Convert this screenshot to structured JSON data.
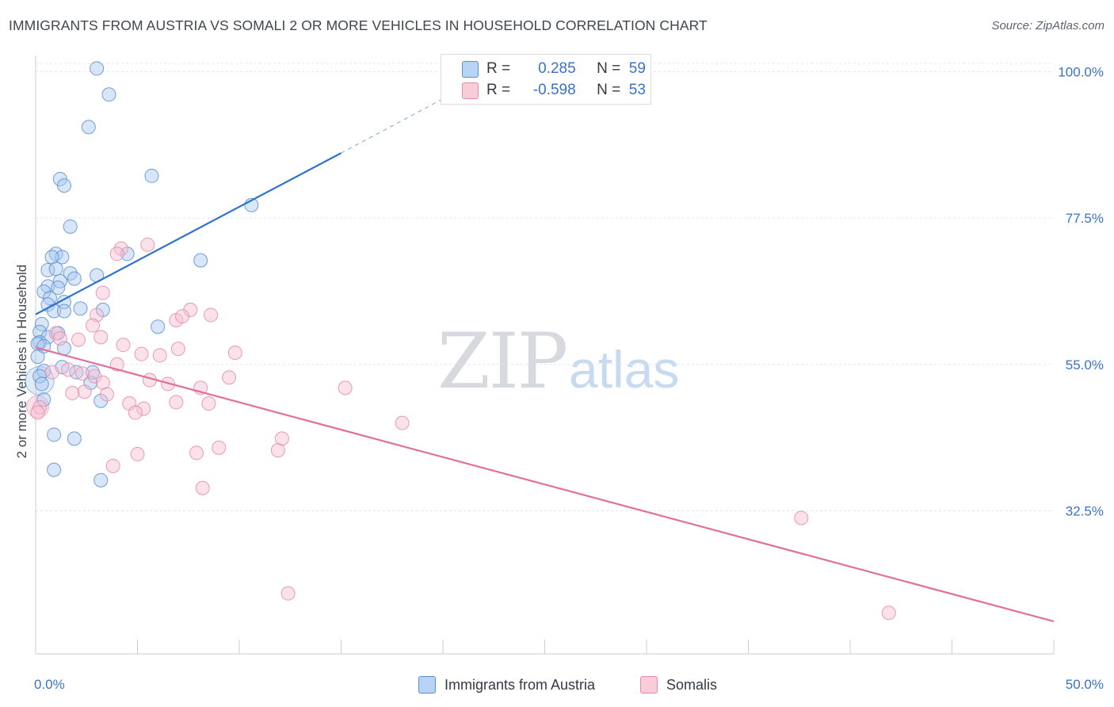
{
  "title": "IMMIGRANTS FROM AUSTRIA VS SOMALI 2 OR MORE VEHICLES IN HOUSEHOLD CORRELATION CHART",
  "source": "Source: ZipAtlas.com",
  "watermark": {
    "zip": "ZIP",
    "atlas": "atlas"
  },
  "colors": {
    "austria_fill": "#a9c8ef",
    "austria_stroke": "#5b8fd4",
    "austria_line": "#2f73cc",
    "somali_fill": "#f6bfd0",
    "somali_stroke": "#e58aa8",
    "somali_line": "#e0709a",
    "tick_label": "#3a73c4",
    "grid": "#e3e6ea"
  },
  "legend": {
    "rows": [
      {
        "r_label": "R =",
        "r_value": "0.285",
        "n_label": "N =",
        "n_value": "59"
      },
      {
        "r_label": "R =",
        "r_value": "-0.598",
        "n_label": "N =",
        "n_value": "53"
      }
    ]
  },
  "chart_data": {
    "type": "scatter",
    "xlabel": "",
    "ylabel": "2 or more Vehicles in Household",
    "xlim": [
      0,
      50
    ],
    "ylim": [
      10.5,
      102.5
    ],
    "x_tick_labels": [
      "0.0%",
      "50.0%"
    ],
    "y_ticks": [
      32.5,
      55.0,
      77.5,
      100.0
    ],
    "y_tick_labels": [
      "32.5%",
      "55.0%",
      "77.5%",
      "100.0%"
    ],
    "x_minor_ticks": [
      0,
      5,
      10,
      15,
      20,
      25,
      30,
      35,
      40,
      45,
      50
    ],
    "grid": true,
    "legend_position": "bottom",
    "series": [
      {
        "name": "Immigrants from Austria",
        "r": 0.285,
        "n": 59,
        "trend": {
          "x0": 0,
          "y0": 62.7,
          "x1": 15,
          "y1": 87.5,
          "dashed_to_x": 21,
          "dashed_to_y": 97.5
        },
        "points": [
          [
            3.0,
            100.5
          ],
          [
            3.6,
            96.5
          ],
          [
            2.6,
            91.5
          ],
          [
            1.2,
            83.5
          ],
          [
            1.4,
            82.5
          ],
          [
            5.7,
            84.0
          ],
          [
            10.6,
            79.5
          ],
          [
            1.7,
            76.2
          ],
          [
            4.5,
            72.0
          ],
          [
            8.1,
            71.0
          ],
          [
            1.0,
            72.0
          ],
          [
            1.3,
            71.5
          ],
          [
            0.8,
            71.5
          ],
          [
            0.6,
            69.5
          ],
          [
            1.7,
            69.0
          ],
          [
            3.0,
            68.7
          ],
          [
            1.0,
            69.7
          ],
          [
            1.2,
            67.8
          ],
          [
            1.9,
            68.2
          ],
          [
            0.6,
            67.0
          ],
          [
            0.4,
            66.2
          ],
          [
            0.7,
            65.2
          ],
          [
            1.1,
            66.8
          ],
          [
            1.4,
            64.6
          ],
          [
            0.6,
            64.2
          ],
          [
            0.9,
            63.2
          ],
          [
            1.4,
            63.2
          ],
          [
            2.2,
            63.6
          ],
          [
            3.3,
            63.4
          ],
          [
            6.0,
            60.8
          ],
          [
            0.3,
            61.2
          ],
          [
            0.2,
            60.0
          ],
          [
            0.6,
            59.2
          ],
          [
            0.2,
            58.4
          ],
          [
            0.1,
            58.2
          ],
          [
            1.1,
            59.8
          ],
          [
            0.4,
            57.8
          ],
          [
            1.4,
            57.5
          ],
          [
            1.3,
            54.6
          ],
          [
            0.4,
            54.0
          ],
          [
            0.2,
            53.2
          ],
          [
            2.0,
            53.8
          ],
          [
            2.7,
            52.2
          ],
          [
            3.2,
            49.4
          ],
          [
            0.4,
            49.6
          ],
          [
            0.9,
            44.2
          ],
          [
            1.9,
            43.6
          ],
          [
            0.9,
            38.8
          ],
          [
            3.2,
            37.2
          ],
          [
            0.1,
            56.2
          ],
          [
            0.3,
            52.0
          ],
          [
            2.8,
            53.8
          ]
        ]
      },
      {
        "name": "Somalis",
        "r": -0.598,
        "n": 53,
        "trend": {
          "x0": 0,
          "y0": 57.6,
          "x1": 50,
          "y1": 15.5
        },
        "points": [
          [
            5.5,
            73.4
          ],
          [
            4.2,
            72.8
          ],
          [
            4.0,
            72.0
          ],
          [
            3.3,
            66.0
          ],
          [
            7.6,
            63.4
          ],
          [
            3.0,
            62.6
          ],
          [
            6.9,
            61.8
          ],
          [
            8.6,
            62.6
          ],
          [
            7.2,
            62.4
          ],
          [
            2.8,
            61.0
          ],
          [
            3.2,
            59.2
          ],
          [
            1.0,
            59.8
          ],
          [
            2.1,
            58.8
          ],
          [
            4.3,
            58.0
          ],
          [
            1.2,
            59.0
          ],
          [
            5.2,
            56.6
          ],
          [
            6.1,
            56.4
          ],
          [
            7.0,
            57.4
          ],
          [
            9.8,
            56.8
          ],
          [
            4.0,
            55.0
          ],
          [
            1.6,
            54.2
          ],
          [
            0.8,
            53.8
          ],
          [
            2.3,
            53.6
          ],
          [
            2.9,
            53.2
          ],
          [
            5.6,
            52.6
          ],
          [
            3.3,
            52.2
          ],
          [
            6.5,
            52.0
          ],
          [
            9.5,
            53.0
          ],
          [
            8.1,
            51.4
          ],
          [
            15.2,
            51.4
          ],
          [
            2.4,
            50.8
          ],
          [
            1.8,
            50.6
          ],
          [
            3.5,
            50.4
          ],
          [
            4.6,
            49.0
          ],
          [
            5.3,
            48.2
          ],
          [
            6.9,
            49.2
          ],
          [
            8.5,
            49.0
          ],
          [
            4.9,
            47.6
          ],
          [
            18.0,
            46.0
          ],
          [
            12.1,
            43.6
          ],
          [
            9.0,
            42.2
          ],
          [
            7.9,
            41.4
          ],
          [
            11.9,
            41.8
          ],
          [
            5.0,
            41.2
          ],
          [
            3.8,
            39.4
          ],
          [
            8.2,
            36.0
          ],
          [
            37.6,
            31.4
          ],
          [
            12.4,
            19.8
          ],
          [
            41.9,
            16.8
          ],
          [
            0.2,
            48.4
          ],
          [
            0.1,
            47.6
          ]
        ]
      }
    ]
  }
}
